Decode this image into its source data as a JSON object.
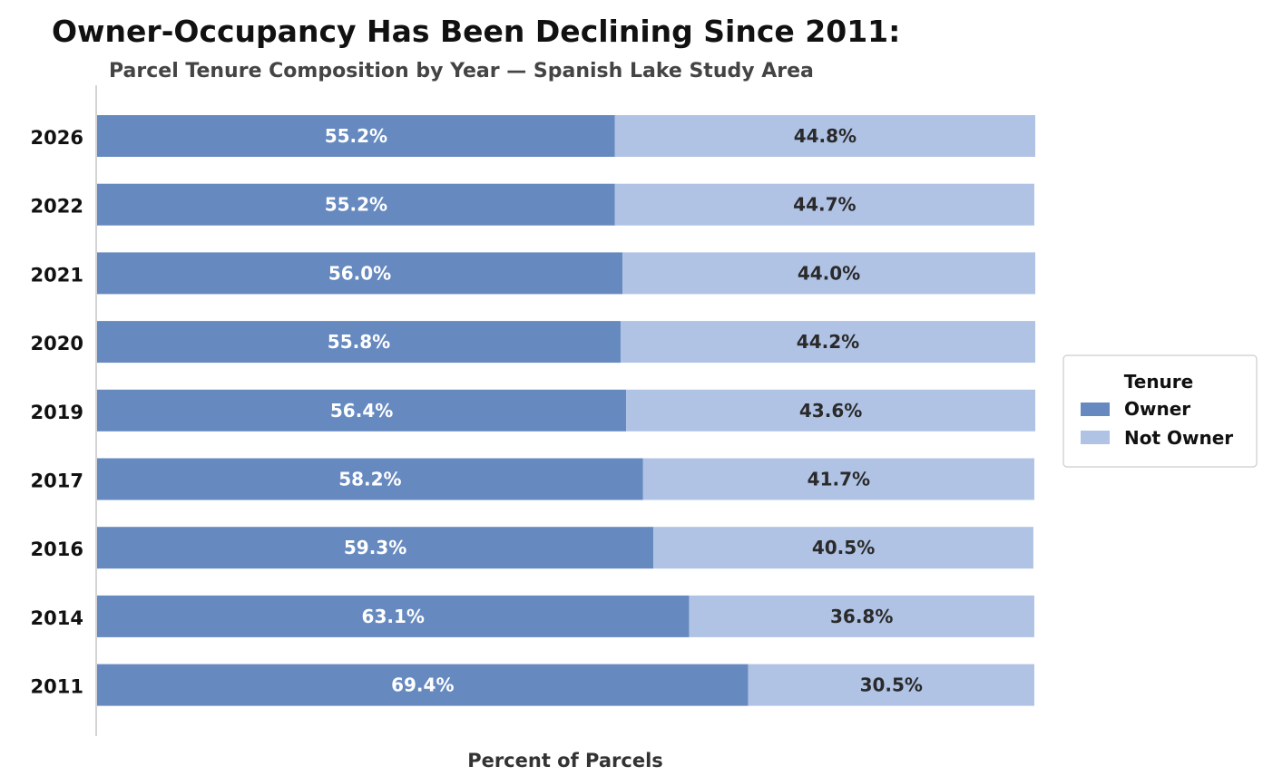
{
  "chart_data": {
    "type": "bar",
    "orientation": "horizontal",
    "stacked": true,
    "title": "Owner-Occupancy Has Been Declining Since 2011:",
    "subtitle": "Parcel Tenure Composition by Year — Spanish Lake Study Area",
    "xlabel": "Percent of Parcels",
    "ylabel": "",
    "xlim": [
      0,
      100
    ],
    "categories": [
      "2026",
      "2022",
      "2021",
      "2020",
      "2019",
      "2017",
      "2016",
      "2014",
      "2011"
    ],
    "series": [
      {
        "name": "Owner",
        "color": "#6689c0",
        "values": [
          55.2,
          55.2,
          56.0,
          55.8,
          56.4,
          58.2,
          59.3,
          63.1,
          69.4
        ],
        "labels": [
          "55.2%",
          "55.2%",
          "56.0%",
          "55.8%",
          "56.4%",
          "58.2%",
          "59.3%",
          "63.1%",
          "69.4%"
        ]
      },
      {
        "name": "Not Owner",
        "color": "#b0c3e5",
        "values": [
          44.8,
          44.7,
          44.0,
          44.2,
          43.6,
          41.7,
          40.5,
          36.8,
          30.5
        ],
        "labels": [
          "44.8%",
          "44.7%",
          "44.0%",
          "44.2%",
          "43.6%",
          "41.7%",
          "40.5%",
          "36.8%",
          "30.5%"
        ]
      }
    ],
    "legend": {
      "title": "Tenure",
      "position": "right"
    },
    "grid": false
  }
}
